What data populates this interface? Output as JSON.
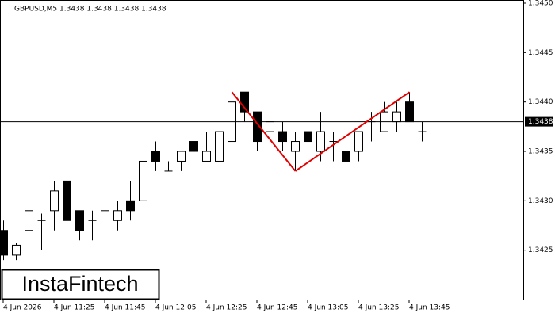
{
  "chart_data": {
    "type": "candlestick",
    "title": "GBPUSD,M5  1.3438 1.3438 1.3438 1.3438",
    "categories": [
      "4 Jun 2026",
      null,
      null,
      null,
      "4 Jun 11:25",
      null,
      null,
      null,
      "4 Jun 11:45",
      null,
      null,
      null,
      "4 Jun 12:05",
      null,
      null,
      null,
      "4 Jun 12:25",
      null,
      null,
      null,
      "4 Jun 12:45",
      null,
      null,
      null,
      "4 Jun 13:05",
      null,
      null,
      null,
      "4 Jun 13:25",
      null,
      null,
      null,
      "4 Jun 13:45",
      null
    ],
    "open": [
      1.3427,
      1.34245,
      1.3427,
      1.3428,
      1.3429,
      1.3432,
      1.3429,
      1.3428,
      1.3429,
      1.3428,
      1.343,
      1.343,
      1.3435,
      1.3433,
      1.3434,
      1.3436,
      1.3434,
      1.3434,
      1.3436,
      1.3441,
      1.3439,
      1.3437,
      1.3437,
      1.3435,
      1.3437,
      1.3435,
      1.3436,
      1.3435,
      1.3435,
      1.3438,
      1.3437,
      1.3438,
      1.344,
      1.3437
    ],
    "high": [
      1.3428,
      1.34257,
      1.3429,
      1.34287,
      1.3432,
      1.3434,
      1.3429,
      1.3429,
      1.3431,
      1.343,
      1.3432,
      1.3434,
      1.3436,
      1.3434,
      1.3435,
      1.3436,
      1.3437,
      1.3437,
      1.3441,
      1.3441,
      1.3439,
      1.3439,
      1.3438,
      1.3437,
      1.3437,
      1.3439,
      1.3437,
      1.3435,
      1.3437,
      1.3439,
      1.344,
      1.344,
      1.3441,
      1.3438
    ],
    "low": [
      1.3424,
      1.3424,
      1.3426,
      1.3425,
      1.3427,
      1.3428,
      1.3426,
      1.3426,
      1.3428,
      1.3427,
      1.3428,
      1.343,
      1.3433,
      1.3433,
      1.3433,
      1.3435,
      1.3434,
      1.3434,
      1.3436,
      1.3438,
      1.3435,
      1.3436,
      1.3435,
      1.3433,
      1.3435,
      1.3434,
      1.3434,
      1.3433,
      1.3434,
      1.3436,
      1.3437,
      1.3437,
      1.3438,
      1.3436
    ],
    "close": [
      1.34245,
      1.34255,
      1.3429,
      1.3428,
      1.3431,
      1.3428,
      1.3427,
      1.3428,
      1.3429,
      1.3429,
      1.3429,
      1.3434,
      1.3434,
      1.3433,
      1.3435,
      1.3435,
      1.3435,
      1.3437,
      1.344,
      1.3439,
      1.3436,
      1.3438,
      1.3436,
      1.3436,
      1.3436,
      1.3437,
      1.3436,
      1.3434,
      1.3437,
      1.3438,
      1.3439,
      1.3439,
      1.3438,
      1.3437
    ],
    "up_color": "#ffffff",
    "down_color": "#000000",
    "ylim": [
      1.342,
      1.345
    ],
    "yticks": [
      {
        "value": 1.3425,
        "label": "1.3425"
      },
      {
        "value": 1.343,
        "label": "1.3430"
      },
      {
        "value": 1.3435,
        "label": "1.3435"
      },
      {
        "value": 1.344,
        "label": "1.3440"
      },
      {
        "value": 1.3445,
        "label": "1.3445"
      },
      {
        "value": 1.345,
        "label": "1.3450"
      }
    ],
    "current_price": {
      "value": 1.3438,
      "label": "1.3438"
    },
    "pattern": {
      "color": "#e00000",
      "points": [
        {
          "index": 18,
          "price": 1.3441
        },
        {
          "index": 23,
          "price": 1.3433
        },
        {
          "index": 32,
          "price": 1.3441
        }
      ]
    },
    "logo": "InstaFintech"
  }
}
